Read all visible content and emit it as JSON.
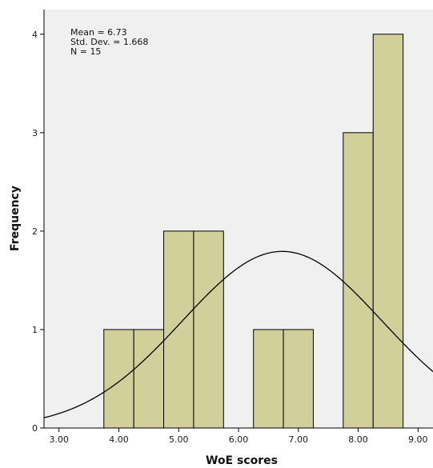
{
  "chart_data": {
    "type": "histogram",
    "title": "",
    "xlabel": "WoE scores",
    "ylabel": "Frequency",
    "xlim": [
      2.75,
      9.25
    ],
    "ylim": [
      0,
      4.25
    ],
    "x_ticks": [
      "3.00",
      "4.00",
      "5.00",
      "6.00",
      "7.00",
      "8.00",
      "9.00"
    ],
    "x_tick_values": [
      3,
      4,
      5,
      6,
      7,
      8,
      9
    ],
    "y_ticks": [
      "0",
      "1",
      "2",
      "3",
      "4"
    ],
    "y_tick_values": [
      0,
      1,
      2,
      3,
      4
    ],
    "bins": [
      {
        "x0": 3.75,
        "x1": 4.25,
        "count": 1
      },
      {
        "x0": 4.25,
        "x1": 4.75,
        "count": 1
      },
      {
        "x0": 4.75,
        "x1": 5.25,
        "count": 2
      },
      {
        "x0": 5.25,
        "x1": 5.75,
        "count": 2
      },
      {
        "x0": 6.25,
        "x1": 6.75,
        "count": 1
      },
      {
        "x0": 6.75,
        "x1": 7.25,
        "count": 1
      },
      {
        "x0": 7.75,
        "x1": 8.25,
        "count": 3
      },
      {
        "x0": 8.25,
        "x1": 8.75,
        "count": 4
      }
    ],
    "normal_curve": {
      "mean": 6.73,
      "sd": 1.668,
      "n": 15,
      "bin_width": 0.5
    },
    "stats": {
      "mean": "Mean = 6.73",
      "sd": "Std. Dev. = 1.668",
      "n": "N = 15"
    },
    "grid": false,
    "colors": {
      "plot_background": "#f0f0f0",
      "bar_fill": "#d2d09a",
      "bar_stroke": "#000000",
      "curve": "#000000"
    }
  }
}
